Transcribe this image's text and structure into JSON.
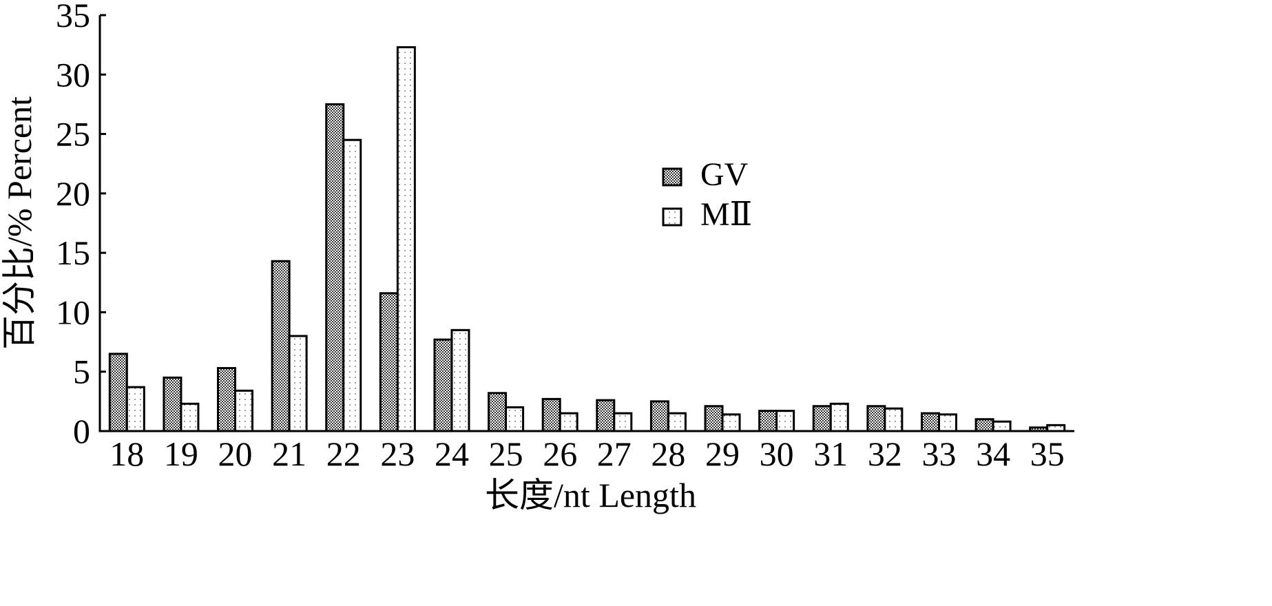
{
  "chart_data": {
    "type": "bar",
    "title": "",
    "xlabel": "长度/nt Length",
    "ylabel": "百分比/% Percent",
    "ylim": [
      0,
      35
    ],
    "yticks": [
      "0",
      "5",
      "10",
      "15",
      "20",
      "25",
      "30",
      "35"
    ],
    "grid": false,
    "legend_position": "upper-center-right",
    "categories": [
      "18",
      "19",
      "20",
      "21",
      "22",
      "23",
      "24",
      "25",
      "26",
      "27",
      "28",
      "29",
      "30",
      "31",
      "32",
      "33",
      "34",
      "35"
    ],
    "series": [
      {
        "name": "GV",
        "pattern": "dense-dots",
        "values": [
          6.5,
          4.5,
          5.3,
          14.3,
          27.5,
          11.6,
          7.7,
          3.2,
          2.7,
          2.6,
          2.5,
          2.1,
          1.7,
          2.1,
          2.1,
          1.5,
          1.0,
          0.3
        ]
      },
      {
        "name": "MⅡ",
        "pattern": "sparse-dots",
        "values": [
          3.7,
          2.3,
          3.4,
          8.0,
          24.5,
          32.3,
          8.5,
          2.0,
          1.5,
          1.5,
          1.5,
          1.4,
          1.7,
          2.3,
          1.9,
          1.4,
          0.8,
          0.5
        ]
      }
    ]
  }
}
